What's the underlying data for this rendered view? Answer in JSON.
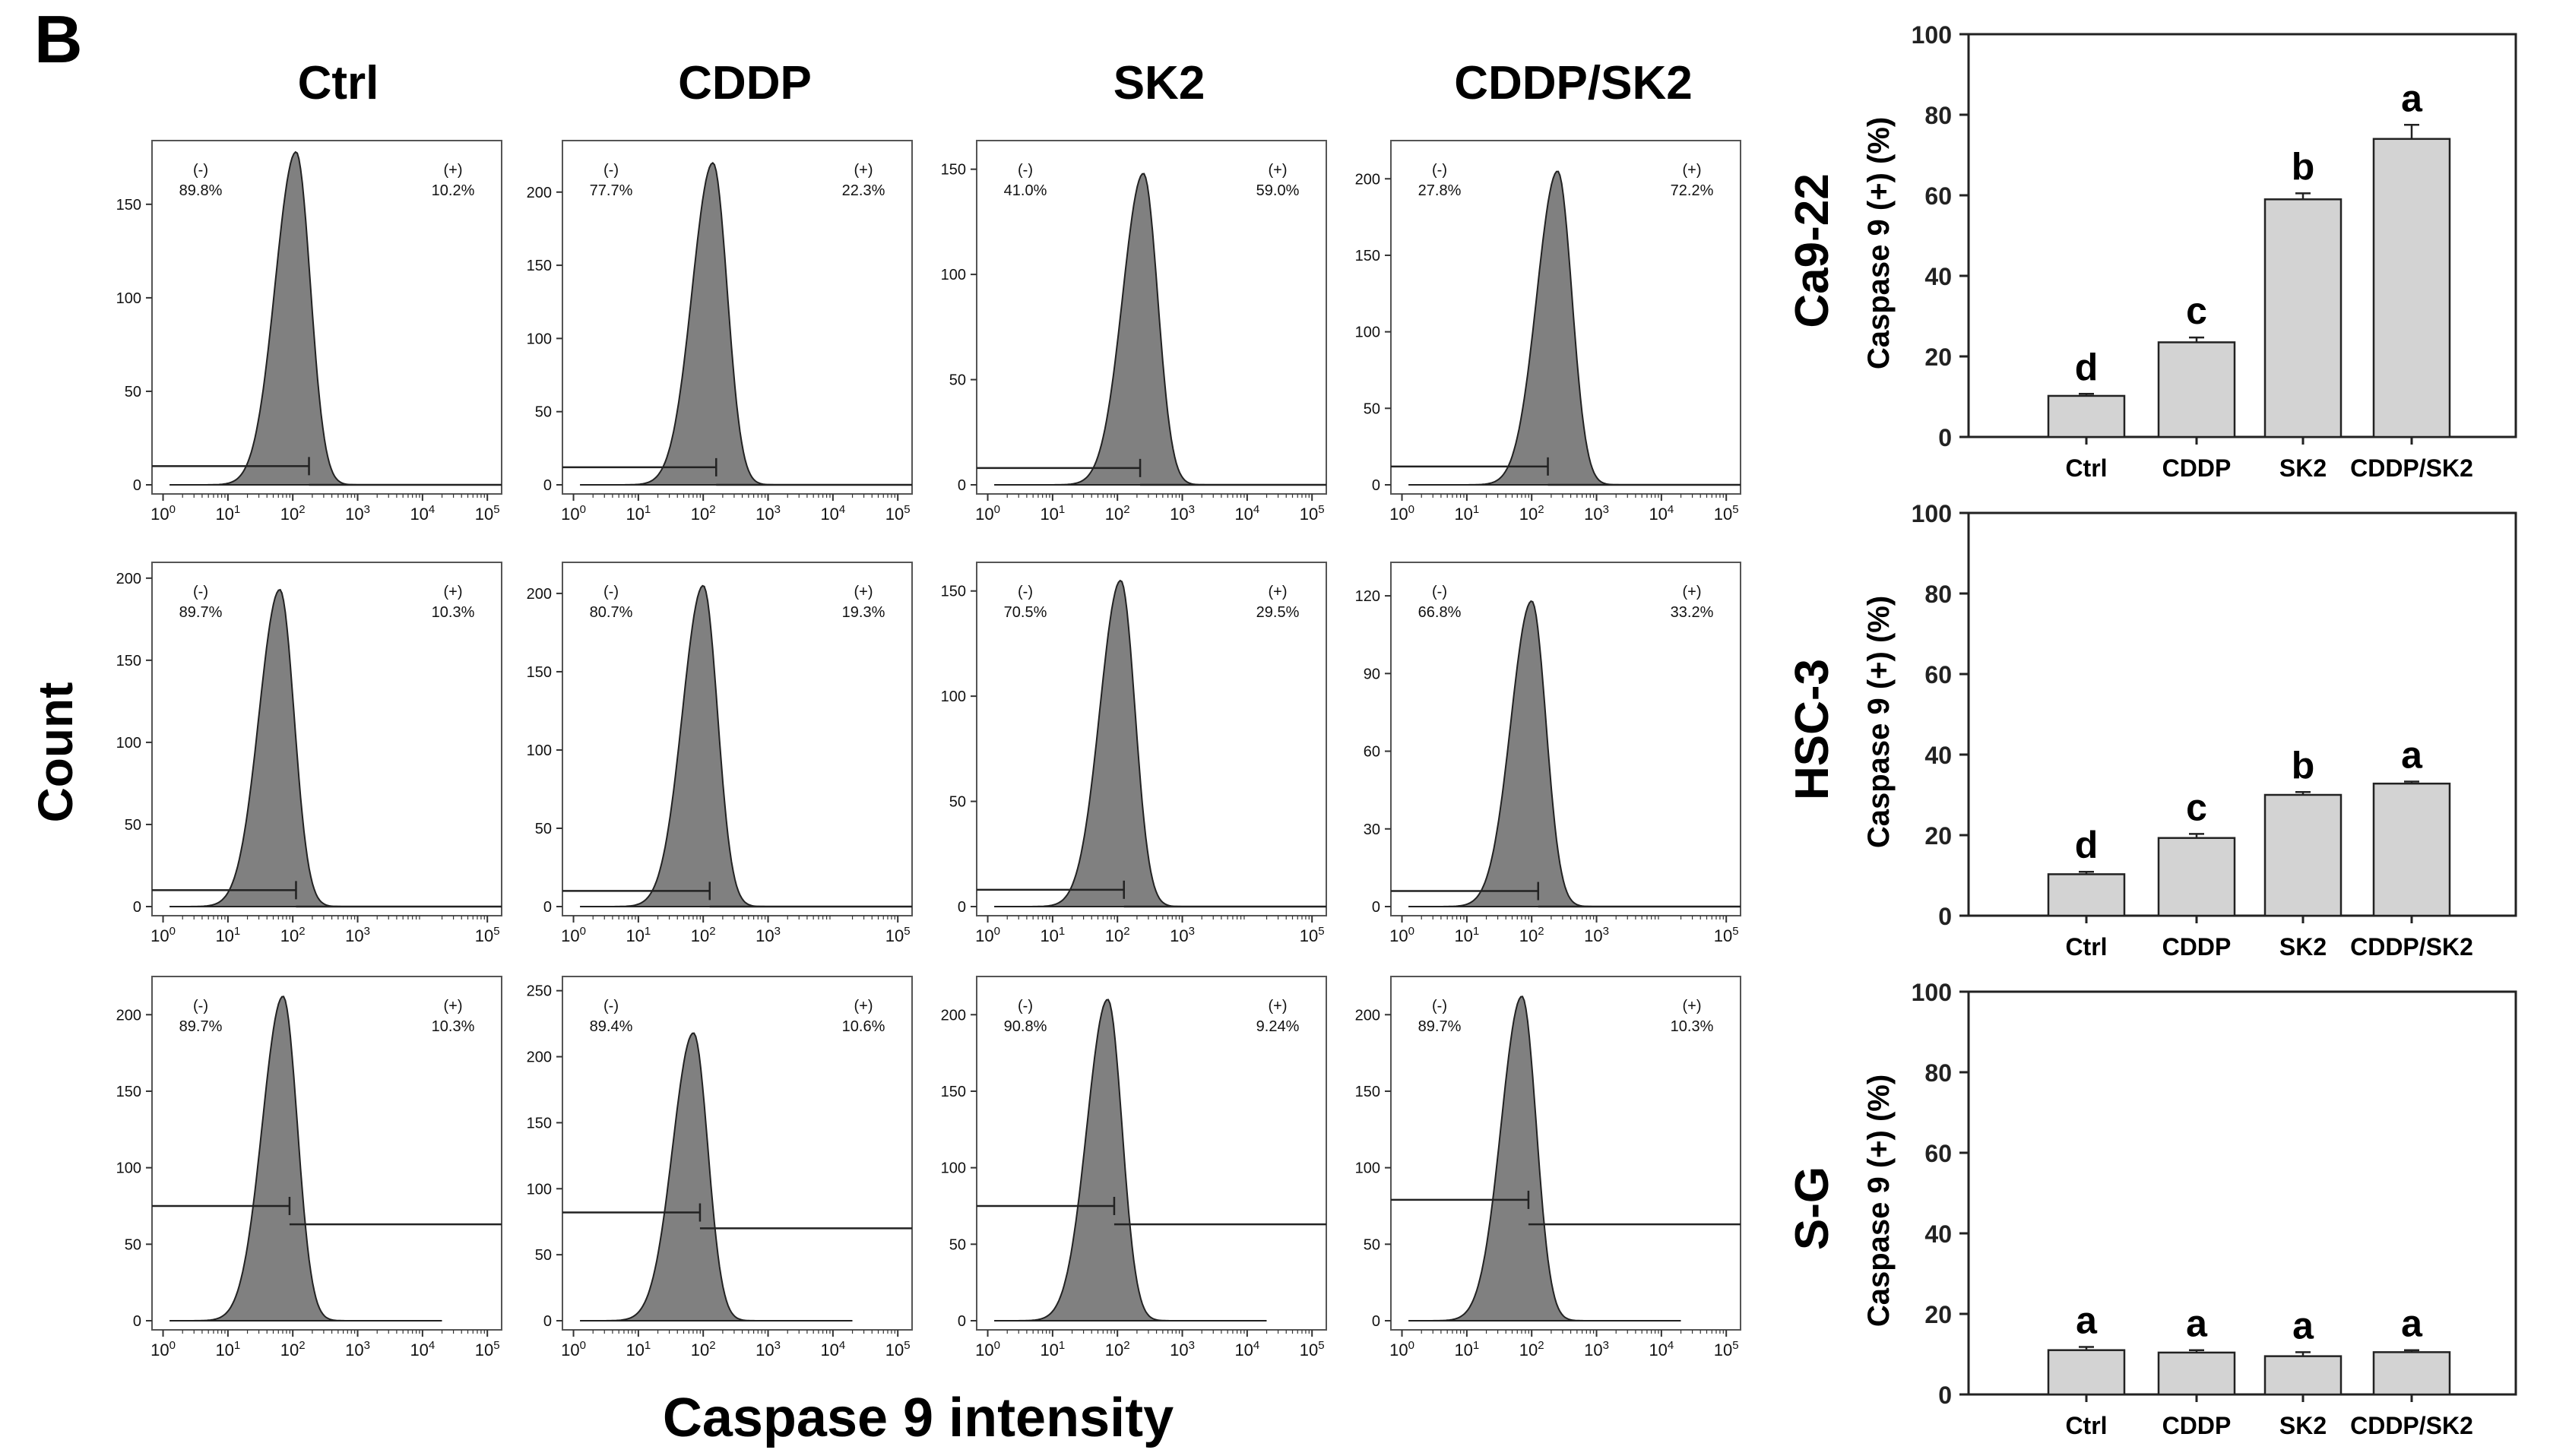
{
  "figure": {
    "panel_label": "B",
    "columns": [
      "Ctrl",
      "CDDP",
      "SK2",
      "CDDP/SK2"
    ],
    "rows": [
      "Ca9-22",
      "HSC-3",
      "S-G"
    ],
    "y_title": "Count",
    "x_title": "Caspase 9 intensity",
    "gate_neg": "(-)",
    "gate_pos": "(+)"
  },
  "chart_data": [
    {
      "type": "area",
      "group": "histograms",
      "cell_line": "Ca9-22",
      "panels": [
        {
          "name": "Ctrl",
          "neg_label": "89.8%",
          "pos_label": "10.2%",
          "ylim": [
            0,
            180
          ],
          "yticks": [
            0,
            50,
            100,
            150
          ],
          "xticks": [
            "10^0",
            "10^1",
            "10^2",
            "10^3",
            "10^4",
            "10^5"
          ],
          "peak_log": 2.05,
          "peak_count": 178,
          "gate_log": 2.25,
          "gate_count": 10,
          "gate_right_count": 0
        },
        {
          "name": "CDDP",
          "neg_label": "77.7%",
          "pos_label": "22.3%",
          "ylim": [
            0,
            230
          ],
          "yticks": [
            0,
            50,
            100,
            150,
            200
          ],
          "xticks": [
            "10^0",
            "10^1",
            "10^2",
            "10^3",
            "10^4",
            "10^5"
          ],
          "peak_log": 2.15,
          "peak_count": 220,
          "gate_log": 2.2,
          "gate_count": 12,
          "gate_right_count": 0
        },
        {
          "name": "SK2",
          "neg_label": "41.0%",
          "pos_label": "59.0%",
          "ylim": [
            0,
            160
          ],
          "yticks": [
            0,
            50,
            100,
            150
          ],
          "xticks": [
            "10^0",
            "10^1",
            "10^2",
            "10^3",
            "10^4",
            "10^5"
          ],
          "peak_log": 2.4,
          "peak_count": 148,
          "gate_log": 2.35,
          "gate_count": 8,
          "gate_right_count": 0
        },
        {
          "name": "CDDP/SK2",
          "neg_label": "27.8%",
          "pos_label": "72.2%",
          "ylim": [
            0,
            220
          ],
          "yticks": [
            0,
            50,
            100,
            150,
            200
          ],
          "xticks": [
            "10^0",
            "10^1",
            "10^2",
            "10^3",
            "10^4",
            "10^5"
          ],
          "peak_log": 2.4,
          "peak_count": 205,
          "gate_log": 2.25,
          "gate_count": 12,
          "gate_right_count": 0
        }
      ]
    },
    {
      "type": "area",
      "group": "histograms",
      "cell_line": "HSC-3",
      "panels": [
        {
          "name": "Ctrl",
          "neg_label": "89.7%",
          "pos_label": "10.3%",
          "ylim": [
            0,
            205
          ],
          "yticks": [
            0,
            50,
            100,
            150,
            200
          ],
          "xticks": [
            "10^0",
            "10^1",
            "10^2",
            "10^3",
            "10^5"
          ],
          "peak_log": 1.8,
          "peak_count": 193,
          "gate_log": 2.05,
          "gate_count": 10,
          "gate_right_count": 0
        },
        {
          "name": "CDDP",
          "neg_label": "80.7%",
          "pos_label": "19.3%",
          "ylim": [
            0,
            215
          ],
          "yticks": [
            0,
            50,
            100,
            150,
            200
          ],
          "xticks": [
            "10^0",
            "10^1",
            "10^2",
            "10^3",
            "10^5"
          ],
          "peak_log": 2.0,
          "peak_count": 205,
          "gate_log": 2.1,
          "gate_count": 10,
          "gate_right_count": 0
        },
        {
          "name": "SK2",
          "neg_label": "70.5%",
          "pos_label": "29.5%",
          "ylim": [
            0,
            160
          ],
          "yticks": [
            0,
            50,
            100,
            150
          ],
          "xticks": [
            "10^0",
            "10^1",
            "10^2",
            "10^3",
            "10^5"
          ],
          "peak_log": 2.05,
          "peak_count": 155,
          "gate_log": 2.1,
          "gate_count": 8,
          "gate_right_count": 0
        },
        {
          "name": "CDDP/SK2",
          "neg_label": "66.8%",
          "pos_label": "33.2%",
          "ylim": [
            0,
            130
          ],
          "yticks": [
            0,
            30,
            60,
            90,
            120
          ],
          "xticks": [
            "10^0",
            "10^1",
            "10^2",
            "10^3",
            "10^5"
          ],
          "peak_log": 2.0,
          "peak_count": 118,
          "gate_log": 2.1,
          "gate_count": 6,
          "gate_right_count": 0
        }
      ]
    },
    {
      "type": "area",
      "group": "histograms",
      "cell_line": "S-G",
      "panels": [
        {
          "name": "Ctrl",
          "neg_label": "89.7%",
          "pos_label": "10.3%",
          "ylim": [
            0,
            220
          ],
          "yticks": [
            0,
            50,
            100,
            150,
            200
          ],
          "xticks": [
            "10^0",
            "10^1",
            "10^2",
            "10^3",
            "10^4",
            "10^5"
          ],
          "peak_log": 1.85,
          "peak_count": 212,
          "gate_log": 1.95,
          "gate_count": 75,
          "gate_right_count": 63
        },
        {
          "name": "CDDP",
          "neg_label": "89.4%",
          "pos_label": "10.6%",
          "ylim": [
            0,
            255
          ],
          "yticks": [
            0,
            50,
            100,
            150,
            200,
            250
          ],
          "xticks": [
            "10^0",
            "10^1",
            "10^2",
            "10^3",
            "10^4",
            "10^5"
          ],
          "peak_log": 1.85,
          "peak_count": 218,
          "gate_log": 1.95,
          "gate_count": 82,
          "gate_right_count": 70
        },
        {
          "name": "SK2",
          "neg_label": "90.8%",
          "pos_label": "9.24%",
          "ylim": [
            0,
            220
          ],
          "yticks": [
            0,
            50,
            100,
            150,
            200
          ],
          "xticks": [
            "10^0",
            "10^1",
            "10^2",
            "10^3",
            "10^4",
            "10^5"
          ],
          "peak_log": 1.85,
          "peak_count": 210,
          "gate_log": 1.95,
          "gate_count": 75,
          "gate_right_count": 63
        },
        {
          "name": "CDDP/SK2",
          "neg_label": "89.7%",
          "pos_label": "10.3%",
          "ylim": [
            0,
            220
          ],
          "yticks": [
            0,
            50,
            100,
            150,
            200
          ],
          "xticks": [
            "10^0",
            "10^1",
            "10^2",
            "10^3",
            "10^4",
            "10^5"
          ],
          "peak_log": 1.85,
          "peak_count": 212,
          "gate_log": 1.95,
          "gate_count": 79,
          "gate_right_count": 63
        }
      ]
    },
    {
      "type": "bar",
      "group": "bars",
      "row_label": "Ca9-22",
      "ylabel": "Caspase 9 (+) (%)",
      "categories": [
        "Ctrl",
        "CDDP",
        "SK2",
        "CDDP/SK2"
      ],
      "values": [
        10.2,
        23.5,
        59.0,
        74.0
      ],
      "errors": [
        0.5,
        1.2,
        1.5,
        3.5
      ],
      "letters": [
        "d",
        "c",
        "b",
        "a"
      ],
      "ylim": [
        0,
        100
      ],
      "yticks": [
        0,
        20,
        40,
        60,
        80,
        100
      ]
    },
    {
      "type": "bar",
      "group": "bars",
      "row_label": "HSC-3",
      "ylabel": "Caspase 9 (+) (%)",
      "categories": [
        "Ctrl",
        "CDDP",
        "SK2",
        "CDDP/SK2"
      ],
      "values": [
        10.3,
        19.3,
        30.0,
        32.8
      ],
      "errors": [
        0.6,
        1.0,
        0.7,
        0.5
      ],
      "letters": [
        "d",
        "c",
        "b",
        "a"
      ],
      "ylim": [
        0,
        100
      ],
      "yticks": [
        0,
        20,
        40,
        60,
        80,
        100
      ]
    },
    {
      "type": "bar",
      "group": "bars",
      "row_label": "S-G",
      "ylabel": "Caspase 9 (+) (%)",
      "categories": [
        "Ctrl",
        "CDDP",
        "SK2",
        "CDDP/SK2"
      ],
      "values": [
        11.0,
        10.4,
        9.5,
        10.5
      ],
      "errors": [
        0.8,
        0.6,
        1.0,
        0.5
      ],
      "letters": [
        "a",
        "a",
        "a",
        "a"
      ],
      "ylim": [
        0,
        100
      ],
      "yticks": [
        0,
        20,
        40,
        60,
        80,
        100
      ]
    }
  ]
}
